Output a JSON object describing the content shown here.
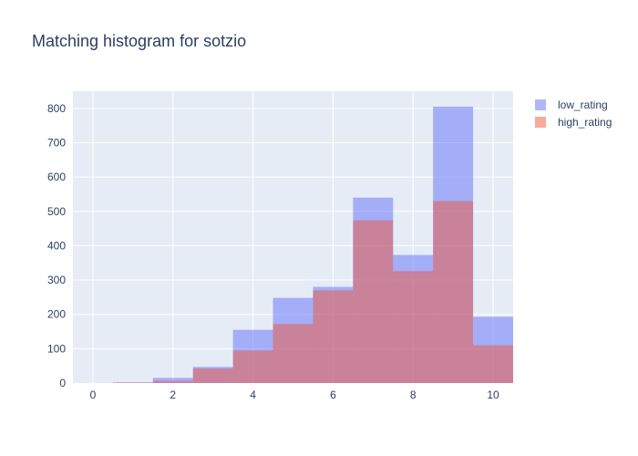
{
  "chart_data": {
    "type": "bar",
    "title": "Matching histogram for sotzio",
    "xlabel": "",
    "ylabel": "",
    "xlim": [
      -0.5,
      10.5
    ],
    "ylim": [
      0,
      850
    ],
    "grid": true,
    "legend_position": "top-right",
    "bin_width": 1,
    "x_ticks": [
      0,
      2,
      4,
      6,
      8,
      10
    ],
    "y_ticks": [
      0,
      100,
      200,
      300,
      400,
      500,
      600,
      700,
      800
    ],
    "bin_centers": [
      1,
      2,
      3,
      4,
      5,
      6,
      7,
      8,
      9,
      10
    ],
    "series": [
      {
        "name": "low_rating",
        "color": "#636efa",
        "opacity": 0.5,
        "values": [
          2,
          15,
          47,
          155,
          248,
          280,
          540,
          373,
          805,
          193
        ]
      },
      {
        "name": "high_rating",
        "color": "#ef553b",
        "opacity": 0.5,
        "values": [
          1,
          6,
          42,
          95,
          172,
          270,
          474,
          326,
          530,
          110
        ]
      }
    ]
  }
}
